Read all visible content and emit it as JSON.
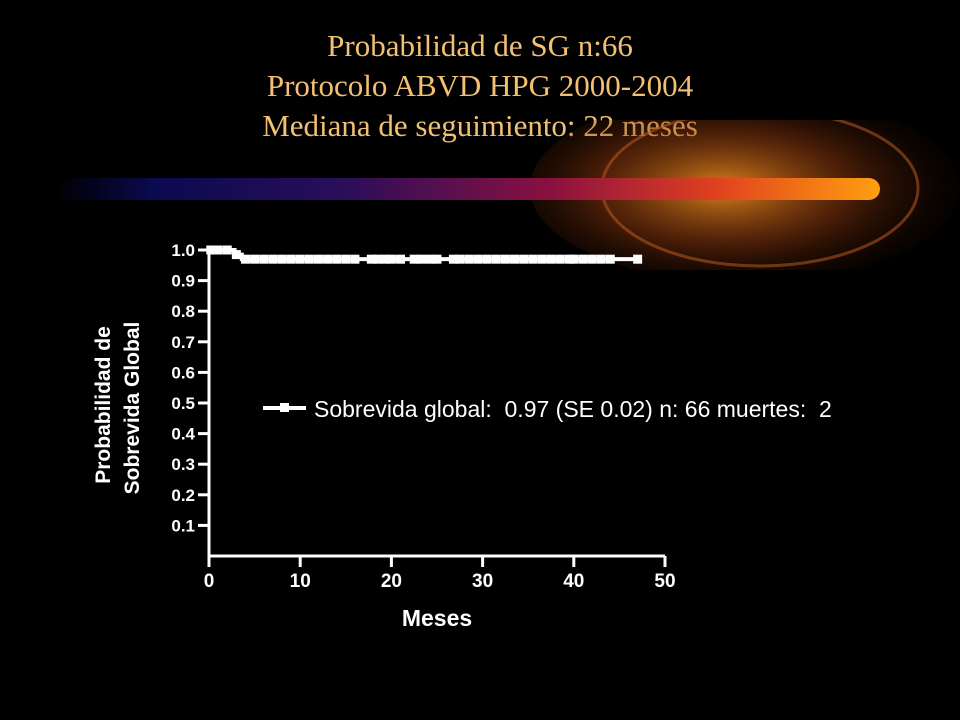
{
  "slide": {
    "title_lines": [
      "Probabilidad de SG n:66",
      "Protocolo  ABVD HPG 2000-2004",
      "Mediana de seguimiento:  22 meses"
    ]
  },
  "colors": {
    "background": "#000000",
    "title": "#f2c070",
    "axes": "#ffffff",
    "series": "#ffffff",
    "bar_gradient": [
      "#0a0a40",
      "#3a1060",
      "#a0103a",
      "#e04a20",
      "#ff9a10"
    ]
  },
  "chart_data": {
    "type": "line",
    "subtype": "kaplan-meier",
    "xlabel": "Meses",
    "ylabel_lines": [
      "Probabilidad de",
      "Sobrevida Global"
    ],
    "xlim": [
      0,
      50
    ],
    "ylim": [
      0,
      1.0
    ],
    "x_ticks": [
      0,
      10,
      20,
      30,
      40,
      50
    ],
    "x_tick_labels": [
      "0",
      "10",
      "20",
      "30",
      "40",
      "50"
    ],
    "y_ticks": [
      0.1,
      0.2,
      0.3,
      0.4,
      0.5,
      0.6,
      0.7,
      0.8,
      0.9,
      1.0
    ],
    "y_tick_labels": [
      "0.1",
      "0.2",
      "0.3",
      "0.4",
      "0.5",
      "0.6",
      "0.7",
      "0.8",
      "0.9",
      "1.0"
    ],
    "grid": false,
    "legend_position": "center-right",
    "series": [
      {
        "name": "Sobrevida global:  0.97 (SE 0.02) n: 66 muertes:  2",
        "steps": [
          {
            "x": 0,
            "y": 1.0
          },
          {
            "x": 2.8,
            "y": 0.985
          },
          {
            "x": 3.6,
            "y": 0.97
          },
          {
            "x": 47,
            "y": 0.97
          }
        ],
        "censored": [
          {
            "x": 0.2,
            "y": 1.0
          },
          {
            "x": 1,
            "y": 1.0
          },
          {
            "x": 2,
            "y": 1.0
          },
          {
            "x": 3,
            "y": 0.985
          },
          {
            "x": 4,
            "y": 0.97
          },
          {
            "x": 5,
            "y": 0.97
          },
          {
            "x": 6,
            "y": 0.97
          },
          {
            "x": 7,
            "y": 0.97
          },
          {
            "x": 8,
            "y": 0.97
          },
          {
            "x": 9,
            "y": 0.97
          },
          {
            "x": 10,
            "y": 0.97
          },
          {
            "x": 11,
            "y": 0.97
          },
          {
            "x": 12,
            "y": 0.97
          },
          {
            "x": 13,
            "y": 0.97
          },
          {
            "x": 14,
            "y": 0.97
          },
          {
            "x": 15,
            "y": 0.97
          },
          {
            "x": 16,
            "y": 0.97
          },
          {
            "x": 17.8,
            "y": 0.97
          },
          {
            "x": 18.5,
            "y": 0.97
          },
          {
            "x": 19.3,
            "y": 0.97
          },
          {
            "x": 20,
            "y": 0.97
          },
          {
            "x": 21,
            "y": 0.97
          },
          {
            "x": 22.5,
            "y": 0.97
          },
          {
            "x": 23.3,
            "y": 0.97
          },
          {
            "x": 24.2,
            "y": 0.97
          },
          {
            "x": 25,
            "y": 0.97
          },
          {
            "x": 26.8,
            "y": 0.97
          },
          {
            "x": 27.5,
            "y": 0.97
          },
          {
            "x": 28.5,
            "y": 0.97
          },
          {
            "x": 29.5,
            "y": 0.97
          },
          {
            "x": 30.5,
            "y": 0.97
          },
          {
            "x": 31.5,
            "y": 0.97
          },
          {
            "x": 32.5,
            "y": 0.97
          },
          {
            "x": 33.5,
            "y": 0.97
          },
          {
            "x": 34.5,
            "y": 0.97
          },
          {
            "x": 35.5,
            "y": 0.97
          },
          {
            "x": 36.5,
            "y": 0.97
          },
          {
            "x": 37.5,
            "y": 0.97
          },
          {
            "x": 38.5,
            "y": 0.97
          },
          {
            "x": 39.5,
            "y": 0.97
          },
          {
            "x": 40,
            "y": 0.97
          },
          {
            "x": 41,
            "y": 0.97
          },
          {
            "x": 42,
            "y": 0.97
          },
          {
            "x": 43,
            "y": 0.97
          },
          {
            "x": 44,
            "y": 0.97
          },
          {
            "x": 47,
            "y": 0.97
          }
        ]
      }
    ]
  }
}
